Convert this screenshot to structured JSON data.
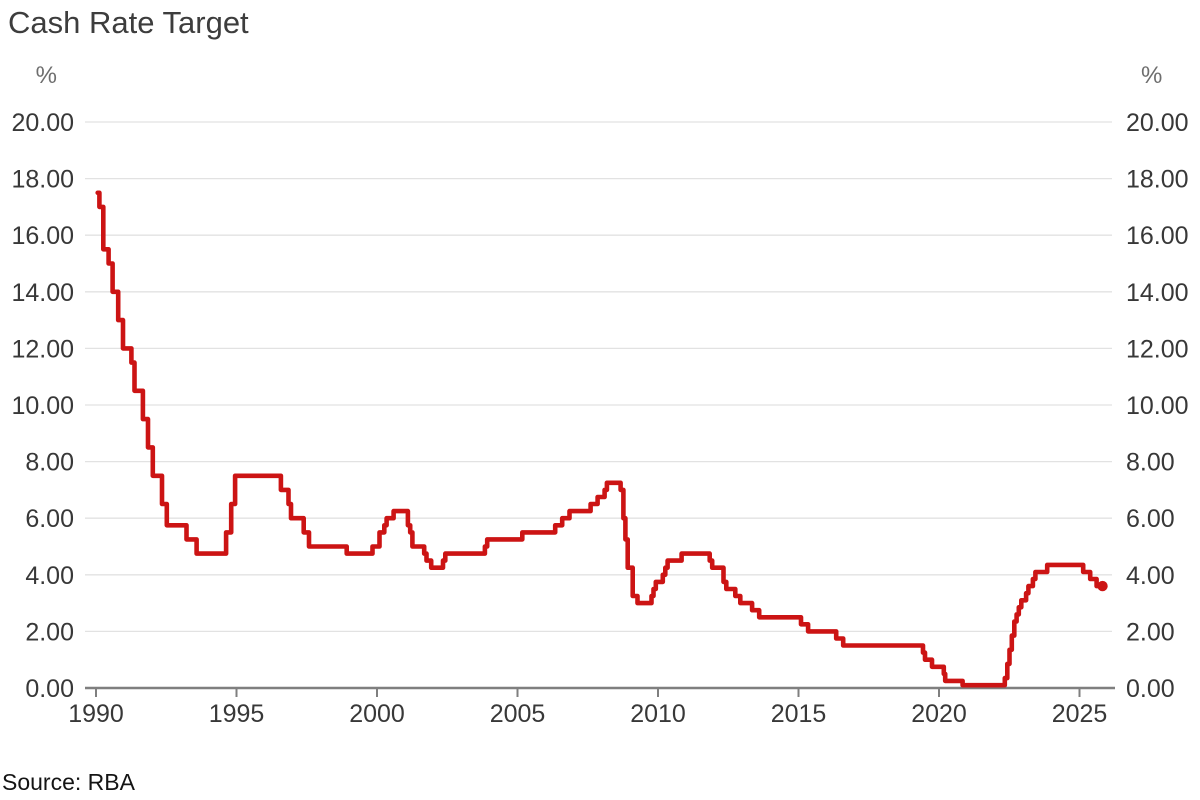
{
  "page": {
    "title": "Cash Rate Target",
    "source": "Source: RBA"
  },
  "colors": {
    "line": "#cc1414",
    "grid": "#e2e2e2",
    "axis": "#7f7f7f",
    "axis_label": "#383838",
    "unit_label": "#6e6e6e",
    "title_text": "#3d3d3d",
    "source_text": "#141414",
    "background": "#ffffff"
  },
  "chart_data": {
    "type": "line",
    "line_style": "step-after",
    "title": "Cash Rate Target",
    "source": "Source: RBA",
    "unit_left": "%",
    "unit_right": "%",
    "xlabel": "",
    "ylabel": "%",
    "xlim": [
      1989.6,
      2026.1
    ],
    "ylim": [
      0,
      20
    ],
    "grid": true,
    "legend": "none",
    "end_marker": true,
    "x_end": 2025.82,
    "xticks": [
      {
        "value": 1990,
        "label": "1990"
      },
      {
        "value": 1995,
        "label": "1995"
      },
      {
        "value": 2000,
        "label": "2000"
      },
      {
        "value": 2005,
        "label": "2005"
      },
      {
        "value": 2010,
        "label": "2010"
      },
      {
        "value": 2015,
        "label": "2015"
      },
      {
        "value": 2020,
        "label": "2020"
      },
      {
        "value": 2025,
        "label": "2025"
      }
    ],
    "yticks": [
      {
        "value": 0,
        "label": "0.00"
      },
      {
        "value": 2,
        "label": "2.00"
      },
      {
        "value": 4,
        "label": "4.00"
      },
      {
        "value": 6,
        "label": "6.00"
      },
      {
        "value": 8,
        "label": "8.00"
      },
      {
        "value": 10,
        "label": "10.00"
      },
      {
        "value": 12,
        "label": "12.00"
      },
      {
        "value": 14,
        "label": "14.00"
      },
      {
        "value": 16,
        "label": "16.00"
      },
      {
        "value": 18,
        "label": "18.00"
      },
      {
        "value": 20,
        "label": "20.00"
      }
    ],
    "series": [
      {
        "name": "Cash Rate Target",
        "color": "#cc1414",
        "points": [
          [
            1990.06,
            17.5
          ],
          [
            1990.12,
            17.0
          ],
          [
            1990.26,
            15.5
          ],
          [
            1990.45,
            15.0
          ],
          [
            1990.59,
            14.0
          ],
          [
            1990.79,
            13.0
          ],
          [
            1990.96,
            12.0
          ],
          [
            1991.26,
            11.5
          ],
          [
            1991.37,
            10.5
          ],
          [
            1991.67,
            9.5
          ],
          [
            1991.85,
            8.5
          ],
          [
            1992.02,
            7.5
          ],
          [
            1992.35,
            6.5
          ],
          [
            1992.52,
            5.75
          ],
          [
            1993.22,
            5.25
          ],
          [
            1993.58,
            4.75
          ],
          [
            1994.63,
            5.5
          ],
          [
            1994.81,
            6.5
          ],
          [
            1994.95,
            7.5
          ],
          [
            1996.58,
            7.0
          ],
          [
            1996.85,
            6.5
          ],
          [
            1996.94,
            6.0
          ],
          [
            1997.39,
            5.5
          ],
          [
            1997.58,
            5.0
          ],
          [
            1998.92,
            4.75
          ],
          [
            1999.84,
            5.0
          ],
          [
            2000.09,
            5.5
          ],
          [
            2000.26,
            5.75
          ],
          [
            2000.34,
            6.0
          ],
          [
            2000.59,
            6.25
          ],
          [
            2001.1,
            5.75
          ],
          [
            2001.18,
            5.5
          ],
          [
            2001.26,
            5.0
          ],
          [
            2001.68,
            4.75
          ],
          [
            2001.76,
            4.5
          ],
          [
            2001.93,
            4.25
          ],
          [
            2002.35,
            4.5
          ],
          [
            2002.43,
            4.75
          ],
          [
            2003.84,
            5.0
          ],
          [
            2003.92,
            5.25
          ],
          [
            2005.17,
            5.5
          ],
          [
            2006.34,
            5.75
          ],
          [
            2006.59,
            6.0
          ],
          [
            2006.85,
            6.25
          ],
          [
            2007.6,
            6.5
          ],
          [
            2007.85,
            6.75
          ],
          [
            2008.1,
            7.0
          ],
          [
            2008.18,
            7.25
          ],
          [
            2008.67,
            7.0
          ],
          [
            2008.77,
            6.0
          ],
          [
            2008.84,
            5.25
          ],
          [
            2008.92,
            4.25
          ],
          [
            2009.1,
            3.25
          ],
          [
            2009.27,
            3.0
          ],
          [
            2009.77,
            3.25
          ],
          [
            2009.84,
            3.5
          ],
          [
            2009.92,
            3.75
          ],
          [
            2010.17,
            4.0
          ],
          [
            2010.26,
            4.25
          ],
          [
            2010.34,
            4.5
          ],
          [
            2010.84,
            4.75
          ],
          [
            2011.84,
            4.5
          ],
          [
            2011.93,
            4.25
          ],
          [
            2012.33,
            3.75
          ],
          [
            2012.43,
            3.5
          ],
          [
            2012.75,
            3.25
          ],
          [
            2012.93,
            3.0
          ],
          [
            2013.35,
            2.75
          ],
          [
            2013.6,
            2.5
          ],
          [
            2015.09,
            2.25
          ],
          [
            2015.34,
            2.0
          ],
          [
            2016.34,
            1.75
          ],
          [
            2016.59,
            1.5
          ],
          [
            2019.43,
            1.25
          ],
          [
            2019.5,
            1.0
          ],
          [
            2019.75,
            0.75
          ],
          [
            2020.17,
            0.5
          ],
          [
            2020.22,
            0.25
          ],
          [
            2020.84,
            0.1
          ],
          [
            2022.34,
            0.35
          ],
          [
            2022.43,
            0.85
          ],
          [
            2022.51,
            1.35
          ],
          [
            2022.59,
            1.85
          ],
          [
            2022.68,
            2.35
          ],
          [
            2022.76,
            2.6
          ],
          [
            2022.84,
            2.85
          ],
          [
            2022.93,
            3.1
          ],
          [
            2023.1,
            3.35
          ],
          [
            2023.18,
            3.6
          ],
          [
            2023.34,
            3.85
          ],
          [
            2023.43,
            4.1
          ],
          [
            2023.85,
            4.35
          ],
          [
            2025.13,
            4.1
          ],
          [
            2025.38,
            3.85
          ],
          [
            2025.61,
            3.6
          ]
        ]
      }
    ]
  }
}
